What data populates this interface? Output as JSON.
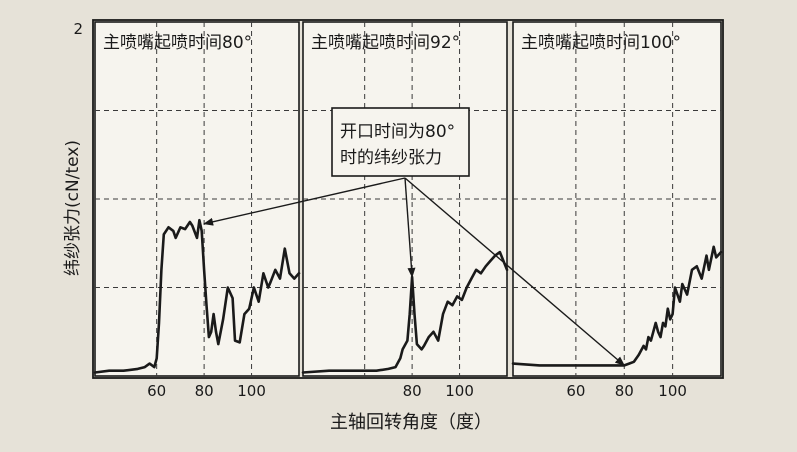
{
  "colors": {
    "background": "#e6e2d8",
    "panel_fill": "#f6f4ee",
    "ink": "#1a1a1a",
    "gridline": "#3a3a3a"
  },
  "chart_data": {
    "type": "line",
    "ylabel": "纬纱张力(cN/tex)",
    "xlabel": "主轴回转角度（度）",
    "y_top_tick": "2",
    "ylim": [
      0,
      2
    ],
    "y_gridlines": [
      0.5,
      1.0,
      1.5
    ],
    "grid": "dashed",
    "annotation": {
      "lines": [
        "开口时间为80°",
        "时的纬纱张力"
      ],
      "targets": [
        {
          "panel": 0,
          "x": 80,
          "y": 0.86
        },
        {
          "panel": 1,
          "x": 80,
          "y": 0.56
        },
        {
          "panel": 2,
          "x": 80,
          "y": 0.06
        }
      ]
    },
    "panels": [
      {
        "title": "主喷嘴起喷时间80°",
        "xlim": [
          34,
          120
        ],
        "x_ticks": [
          60,
          80,
          100
        ],
        "tick_labels": [
          "60",
          "80",
          "100"
        ],
        "x_gridlines": [
          60,
          80,
          100
        ],
        "series": [
          {
            "x": [
              34,
              40,
              46,
              52,
              55,
              57,
              59,
              60,
              61,
              62,
              63,
              65,
              67,
              68,
              70,
              72,
              74,
              75,
              77,
              78,
              79,
              80,
              81,
              82,
              83,
              84,
              85,
              86,
              88,
              90,
              92,
              93,
              95,
              97,
              99,
              101,
              103,
              105,
              107,
              108,
              110,
              112,
              114,
              116,
              118,
              120
            ],
            "y": [
              0.02,
              0.03,
              0.03,
              0.04,
              0.05,
              0.07,
              0.05,
              0.1,
              0.3,
              0.6,
              0.8,
              0.84,
              0.82,
              0.78,
              0.84,
              0.83,
              0.87,
              0.85,
              0.78,
              0.88,
              0.82,
              0.6,
              0.4,
              0.22,
              0.25,
              0.35,
              0.25,
              0.18,
              0.32,
              0.5,
              0.44,
              0.2,
              0.19,
              0.35,
              0.38,
              0.5,
              0.42,
              0.58,
              0.5,
              0.53,
              0.6,
              0.55,
              0.72,
              0.58,
              0.55,
              0.58
            ]
          }
        ]
      },
      {
        "title": "主喷嘴起喷时间92°",
        "xlim": [
          34,
          120
        ],
        "x_ticks": [
          80,
          100
        ],
        "tick_labels": [
          "80",
          "100"
        ],
        "x_gridlines": [
          60,
          80,
          100
        ],
        "series": [
          {
            "x": [
              34,
              45,
              55,
              65,
              70,
              73,
              75,
              76,
              78,
              79,
              80,
              81,
              82,
              84,
              85,
              87,
              89,
              91,
              93,
              95,
              97,
              99,
              101,
              103,
              105,
              107,
              109,
              111,
              113,
              115,
              117,
              120
            ],
            "y": [
              0.02,
              0.03,
              0.03,
              0.03,
              0.04,
              0.05,
              0.1,
              0.15,
              0.2,
              0.35,
              0.56,
              0.35,
              0.18,
              0.15,
              0.17,
              0.22,
              0.25,
              0.2,
              0.35,
              0.42,
              0.4,
              0.45,
              0.43,
              0.5,
              0.55,
              0.6,
              0.58,
              0.62,
              0.65,
              0.68,
              0.7,
              0.6
            ]
          }
        ]
      },
      {
        "title": "主喷嘴起喷时间100°",
        "xlim": [
          34,
          120
        ],
        "x_ticks": [
          60,
          80,
          100
        ],
        "tick_labels": [
          "60",
          "80",
          "100"
        ],
        "x_gridlines": [
          60,
          80,
          100
        ],
        "series": [
          {
            "x": [
              34,
              45,
              55,
              65,
              75,
              80,
              82,
              84,
              86,
              88,
              89,
              90,
              91,
              92,
              93,
              94,
              95,
              96,
              97,
              98,
              99,
              100,
              101,
              103,
              104,
              106,
              108,
              110,
              112,
              114,
              115,
              117,
              118,
              120
            ],
            "y": [
              0.07,
              0.06,
              0.06,
              0.06,
              0.06,
              0.06,
              0.07,
              0.08,
              0.12,
              0.17,
              0.15,
              0.22,
              0.2,
              0.25,
              0.3,
              0.25,
              0.22,
              0.3,
              0.28,
              0.38,
              0.32,
              0.35,
              0.5,
              0.42,
              0.52,
              0.46,
              0.6,
              0.62,
              0.55,
              0.68,
              0.6,
              0.73,
              0.67,
              0.7
            ]
          }
        ]
      }
    ]
  }
}
